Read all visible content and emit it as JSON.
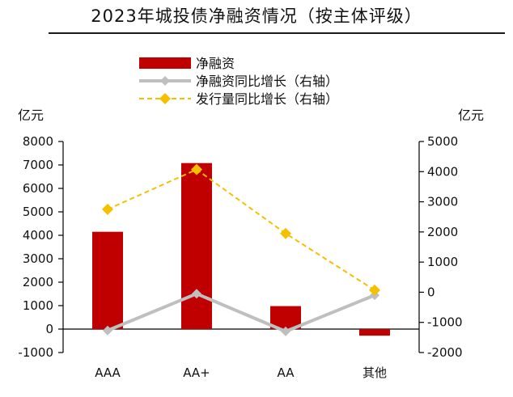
{
  "chart_data": {
    "type": "bar",
    "title": "2023年城投债净融资情况（按主体评级）",
    "categories": [
      "AAA",
      "AA+",
      "AA",
      "其他"
    ],
    "y_left_unit": "亿元",
    "y_right_unit": "亿元",
    "y_left_lim": [
      -1000,
      8000
    ],
    "y_left_ticks": [
      "8000",
      "7000",
      "6000",
      "5000",
      "4000",
      "3000",
      "2000",
      "1000",
      "0",
      "-1000"
    ],
    "y_right_lim": [
      -2000,
      5000
    ],
    "y_right_ticks": [
      "5000",
      "4000",
      "3000",
      "2000",
      "1000",
      "0",
      "-1000",
      "-2000"
    ],
    "grid": false,
    "legend_position": "top-center",
    "series": [
      {
        "name": "净融资",
        "kind": "bar",
        "axis": "left",
        "color": "#c00000",
        "values": [
          4150,
          7080,
          980,
          -280
        ]
      },
      {
        "name": "净融资同比增长（右轴）",
        "kind": "line",
        "axis": "right",
        "color": "#bfbfbf",
        "values": [
          -1270,
          -50,
          -1300,
          -100
        ]
      },
      {
        "name": "发行量同比增长（右轴）",
        "kind": "line-dashed",
        "axis": "right",
        "color": "#f5c000",
        "values": [
          2750,
          4070,
          1950,
          70
        ]
      }
    ]
  }
}
